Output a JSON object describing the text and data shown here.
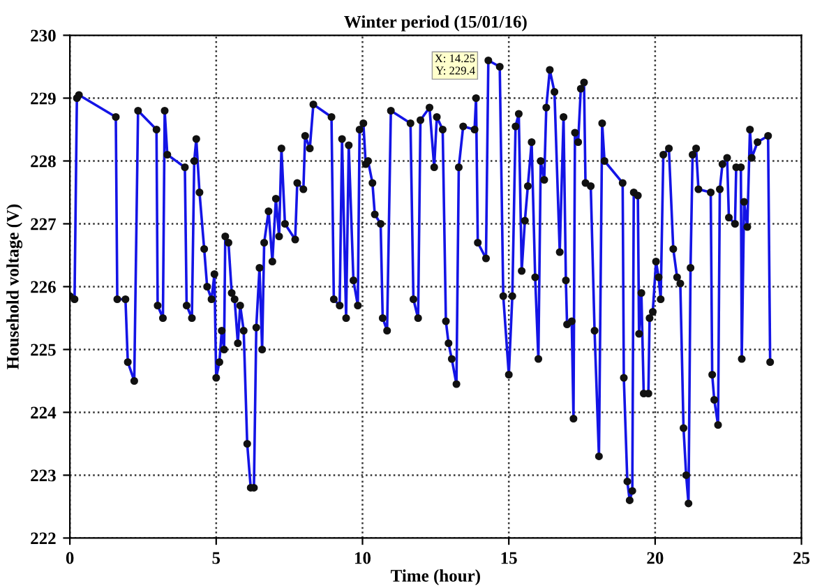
{
  "chart_data": {
    "type": "line",
    "title": "Winter period (15/01/16)",
    "xlabel": "Time (hour)",
    "ylabel": "Household voltage (V)",
    "xlim": [
      0,
      25
    ],
    "xticks": [
      0,
      5,
      10,
      15,
      20,
      25
    ],
    "ylim": [
      222,
      230
    ],
    "yticks": [
      222,
      223,
      224,
      225,
      226,
      227,
      228,
      229,
      230
    ],
    "grid": true,
    "marker": "circle",
    "line_style": "solid",
    "legend": false,
    "annotations": [
      {
        "text": "X: 14.25\nY: 229.4",
        "x": 14.25,
        "y": 229.4
      }
    ],
    "series": [
      {
        "color": "#1414e6",
        "x": [
          0,
          0.16,
          0.24,
          0.31,
          1.57,
          1.62,
          1.9,
          1.98,
          2.2,
          2.33,
          2.96,
          3.0,
          3.18,
          3.24,
          3.33,
          3.93,
          3.99,
          4.17,
          4.25,
          4.32,
          4.43,
          4.59,
          4.69,
          4.84,
          4.94,
          5.0,
          5.11,
          5.19,
          5.27,
          5.31,
          5.42,
          5.53,
          5.63,
          5.74,
          5.82,
          5.94,
          6.06,
          6.18,
          6.29,
          6.37,
          6.48,
          6.57,
          6.64,
          6.79,
          6.92,
          7.04,
          7.15,
          7.23,
          7.35,
          7.7,
          7.77,
          7.98,
          8.04,
          8.2,
          8.32,
          8.94,
          9.02,
          9.22,
          9.3,
          9.44,
          9.53,
          9.69,
          9.84,
          9.9,
          10.03,
          10.11,
          10.19,
          10.34,
          10.42,
          10.62,
          10.69,
          10.84,
          10.97,
          11.64,
          11.74,
          11.9,
          11.98,
          12.29,
          12.45,
          12.54,
          12.74,
          12.85,
          12.94,
          13.05,
          13.21,
          13.29,
          13.44,
          13.83,
          13.88,
          13.94,
          14.22,
          14.3,
          14.69,
          14.81,
          15.0,
          15.12,
          15.23,
          15.34,
          15.44,
          15.55,
          15.65,
          15.78,
          15.9,
          16.01,
          16.09,
          16.21,
          16.28,
          16.4,
          16.56,
          16.74,
          16.87,
          16.95,
          16.99,
          17.15,
          17.21,
          17.26,
          17.37,
          17.46,
          17.57,
          17.62,
          17.8,
          17.93,
          18.08,
          18.19,
          18.27,
          18.89,
          18.93,
          19.05,
          19.13,
          19.22,
          19.27,
          19.41,
          19.45,
          19.53,
          19.61,
          19.77,
          19.81,
          19.92,
          20.03,
          20.12,
          20.19,
          20.28,
          20.47,
          20.62,
          20.75,
          20.86,
          20.97,
          21.06,
          21.14,
          21.21,
          21.28,
          21.4,
          21.48,
          21.9,
          21.95,
          22.02,
          22.15,
          22.21,
          22.3,
          22.46,
          22.52,
          22.73,
          22.77,
          22.93,
          22.96,
          23.04,
          23.15,
          23.24,
          23.3,
          23.5,
          23.86,
          23.93
        ],
        "values": [
          225.85,
          225.8,
          229.0,
          229.05,
          228.7,
          225.8,
          225.8,
          224.8,
          224.5,
          228.8,
          228.5,
          225.7,
          225.5,
          228.8,
          228.1,
          227.9,
          225.7,
          225.5,
          228.0,
          228.35,
          227.5,
          226.6,
          226.0,
          225.8,
          226.2,
          224.55,
          224.8,
          225.3,
          225.0,
          226.8,
          226.7,
          225.9,
          225.8,
          225.1,
          225.7,
          225.3,
          223.5,
          222.8,
          222.8,
          225.35,
          226.3,
          225.0,
          226.7,
          227.2,
          226.4,
          227.4,
          226.8,
          228.2,
          227.0,
          226.75,
          227.65,
          227.55,
          228.4,
          228.2,
          228.9,
          228.7,
          225.8,
          225.7,
          228.35,
          225.5,
          228.25,
          226.1,
          225.7,
          228.5,
          228.6,
          227.95,
          228.0,
          227.65,
          227.15,
          227.0,
          225.5,
          225.3,
          228.8,
          228.6,
          225.8,
          225.5,
          228.65,
          228.85,
          227.9,
          228.7,
          228.5,
          225.45,
          225.1,
          224.85,
          224.45,
          227.9,
          228.55,
          228.5,
          229.0,
          226.7,
          226.45,
          229.6,
          229.5,
          225.85,
          224.6,
          225.85,
          228.55,
          228.75,
          226.25,
          227.05,
          227.6,
          228.3,
          226.15,
          224.85,
          228.0,
          227.7,
          228.85,
          229.45,
          229.1,
          226.55,
          228.7,
          226.1,
          225.4,
          225.45,
          223.9,
          228.45,
          228.3,
          229.15,
          229.25,
          227.65,
          227.6,
          225.3,
          223.3,
          228.6,
          228.0,
          227.65,
          224.55,
          222.9,
          222.6,
          222.75,
          227.5,
          227.45,
          225.25,
          225.9,
          224.3,
          224.3,
          225.5,
          225.6,
          226.4,
          226.15,
          225.8,
          228.1,
          228.2,
          226.6,
          226.15,
          226.05,
          223.75,
          223.0,
          222.55,
          226.3,
          228.1,
          228.2,
          227.55,
          227.5,
          224.6,
          224.2,
          223.8,
          227.55,
          227.95,
          228.05,
          227.1,
          227.0,
          227.9,
          227.9,
          224.85,
          227.35,
          226.95,
          228.5,
          228.05,
          228.3,
          228.4,
          224.8
        ]
      }
    ]
  }
}
